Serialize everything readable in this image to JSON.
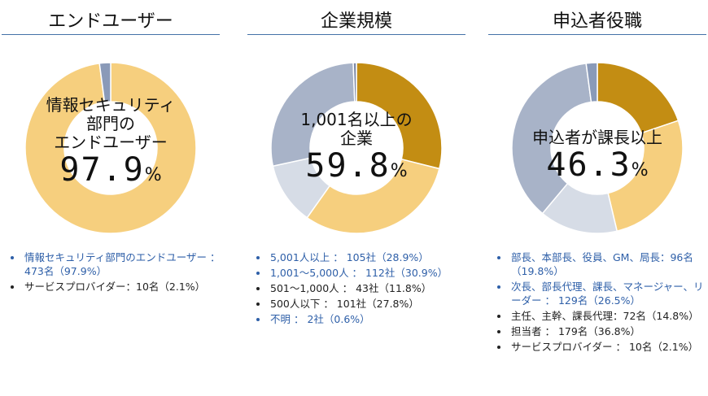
{
  "chart_data": [
    {
      "type": "pie",
      "title": "エンドユーザー",
      "center_label": [
        "情報セキュリティ",
        "部門の",
        "エンドユーザー"
      ],
      "center_value": "97.9",
      "center_unit": "%",
      "slices": [
        {
          "value": 97.9,
          "color": "#f6cf7e"
        },
        {
          "value": 2.1,
          "color": "#8a9ab8"
        }
      ],
      "legend": [
        {
          "text": "情報セキュリティ部門のエンドユーザー ： 473名（97.9%）",
          "color": "blue"
        },
        {
          "text": "サービスプロバイダー：10名（2.1%）",
          "color": "dark"
        }
      ]
    },
    {
      "type": "pie",
      "title": "企業規模",
      "center_label": [
        "1,001名以上の",
        "企業"
      ],
      "center_value": "59.8",
      "center_unit": "%",
      "slices": [
        {
          "value": 28.9,
          "color": "#c38d13"
        },
        {
          "value": 30.9,
          "color": "#f6cf7e"
        },
        {
          "value": 11.8,
          "color": "#d6dce6"
        },
        {
          "value": 27.8,
          "color": "#a8b3c8"
        },
        {
          "value": 0.6,
          "color": "#7e8aa6"
        }
      ],
      "legend": [
        {
          "text": "5,001人以上 ： 105社（28.9%）",
          "color": "blue"
        },
        {
          "text": "1,001～5,000人 ： 112社（30.9%）",
          "color": "blue"
        },
        {
          "text": "501～1,000人 ： 43社（11.8%）",
          "color": "dark"
        },
        {
          "text": "500人以下 ： 101社（27.8%）",
          "color": "dark"
        },
        {
          "text": "不明 ： 2社（0.6%）",
          "color": "blue"
        }
      ]
    },
    {
      "type": "pie",
      "title": "申込者役職",
      "center_label": [
        "申込者が課長以上"
      ],
      "center_value": "46.3",
      "center_unit": "%",
      "slices": [
        {
          "value": 19.8,
          "color": "#c38d13"
        },
        {
          "value": 26.5,
          "color": "#f6cf7e"
        },
        {
          "value": 14.8,
          "color": "#d6dce6"
        },
        {
          "value": 36.8,
          "color": "#a8b3c8"
        },
        {
          "value": 2.1,
          "color": "#8a9ab8"
        }
      ],
      "legend": [
        {
          "text": "部長、本部長、役員、GM、局長：96名（19.8%）",
          "color": "blue"
        },
        {
          "text": "次長、部長代理、課長、マネージャー、リーダー ： 129名（26.5%）",
          "color": "blue"
        },
        {
          "text": "主任、主幹、課長代理：72名（14.8%）",
          "color": "dark"
        },
        {
          "text": "担当者 ： 179名（36.8%）",
          "color": "dark"
        },
        {
          "text": "サービスプロバイダー ： 10名（2.1%）",
          "color": "dark"
        }
      ]
    }
  ]
}
